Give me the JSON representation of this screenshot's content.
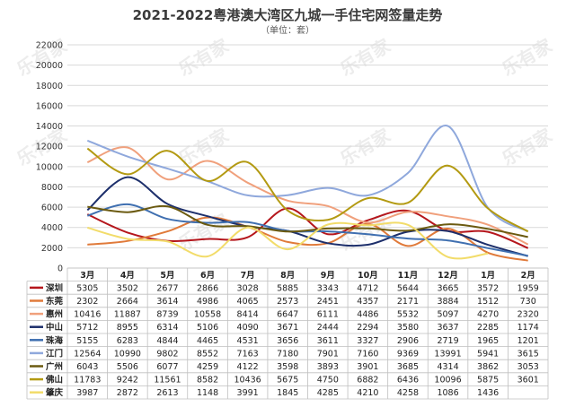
{
  "chart_data": {
    "type": "line",
    "title": "2021-2022粤港澳大湾区九城一手住宅网签量走势",
    "subtitle": "（单位：套）",
    "watermark": "乐有家",
    "categories": [
      "3月",
      "4月",
      "5月",
      "6月",
      "7月",
      "8月",
      "9月",
      "10月",
      "11月",
      "12月",
      "1月",
      "2月"
    ],
    "ylim": [
      0,
      22000
    ],
    "yticks": [
      0,
      2000,
      4000,
      6000,
      8000,
      10000,
      12000,
      14000,
      16000,
      18000,
      20000,
      22000
    ],
    "grid": true,
    "legend_position": "table-left",
    "series": [
      {
        "name": "深圳",
        "color": "#b5161c",
        "values": [
          5305,
          3502,
          2677,
          2866,
          3028,
          5885,
          3343,
          4712,
          5644,
          3665,
          3572,
          1959
        ]
      },
      {
        "name": "东莞",
        "color": "#e07a3a",
        "values": [
          2302,
          2664,
          3614,
          4986,
          4065,
          2573,
          2451,
          4357,
          2171,
          3884,
          1512,
          730
        ]
      },
      {
        "name": "惠州",
        "color": "#f0a07c",
        "values": [
          10416,
          11887,
          8739,
          10558,
          8414,
          6647,
          6111,
          4486,
          5532,
          5097,
          4270,
          2320
        ]
      },
      {
        "name": "中山",
        "color": "#1d2f6b",
        "values": [
          5712,
          8955,
          6314,
          5106,
          4090,
          3671,
          2444,
          2294,
          3580,
          3637,
          2285,
          1174
        ]
      },
      {
        "name": "珠海",
        "color": "#3f6fb0",
        "values": [
          5155,
          6283,
          4844,
          4465,
          4531,
          3656,
          3611,
          3327,
          2906,
          2719,
          1965,
          1201
        ]
      },
      {
        "name": "江门",
        "color": "#8fa8dc",
        "values": [
          12564,
          10990,
          9802,
          8552,
          7163,
          7180,
          7901,
          7160,
          9369,
          13991,
          5941,
          3615
        ]
      },
      {
        "name": "广州",
        "color": "#6b5a10",
        "values": [
          6043,
          5506,
          6077,
          4259,
          4122,
          3598,
          3893,
          3901,
          3685,
          4314,
          3862,
          3053
        ]
      },
      {
        "name": "佛山",
        "color": "#b39a12",
        "values": [
          11783,
          9242,
          11561,
          8582,
          10436,
          5675,
          4750,
          6882,
          6436,
          10096,
          5875,
          3601
        ]
      },
      {
        "name": "肇庆",
        "color": "#f2dc6a",
        "values": [
          3987,
          2872,
          2613,
          1148,
          3991,
          1845,
          4285,
          4210,
          4258,
          1086,
          1436,
          ""
        ]
      }
    ]
  }
}
